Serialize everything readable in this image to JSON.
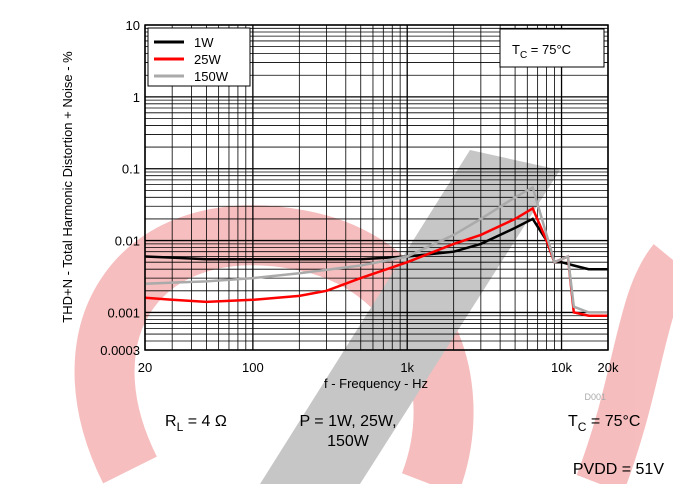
{
  "chart_data": {
    "type": "line",
    "log_x": true,
    "log_y": true,
    "grid": true,
    "ylabel": "THD+N - Total Harmonic Distortion + Noise - %",
    "xlabel": "f - Frequency - Hz",
    "xlim": [
      20,
      20000
    ],
    "ylim": [
      0.0003,
      10
    ],
    "xticks": [
      20,
      100,
      {
        "value": 1000,
        "label": "1k"
      },
      {
        "value": 10000,
        "label": "10k"
      },
      {
        "value": 20000,
        "label": "20k"
      }
    ],
    "yticks": [
      10,
      1,
      0.1,
      0.01,
      0.001,
      0.0003
    ],
    "xminor": [
      30,
      40,
      50,
      60,
      70,
      80,
      90,
      200,
      300,
      400,
      500,
      600,
      700,
      800,
      900,
      2000,
      3000,
      4000,
      5000,
      6000,
      7000,
      8000,
      9000
    ],
    "yminor": [
      0.0004,
      0.0005,
      0.0006,
      0.0007,
      0.0008,
      0.0009,
      0.002,
      0.003,
      0.004,
      0.005,
      0.006,
      0.007,
      0.008,
      0.009,
      0.02,
      0.03,
      0.04,
      0.05,
      0.06,
      0.07,
      0.08,
      0.09,
      0.2,
      0.3,
      0.4,
      0.5,
      0.6,
      0.7,
      0.8,
      0.9,
      2,
      3,
      4,
      5,
      6,
      7,
      8,
      9
    ],
    "legend": "upper left",
    "series": [
      {
        "name": "1W",
        "color": "#000000",
        "x": [
          20,
          30,
          50,
          100,
          200,
          500,
          1000,
          2000,
          3000,
          5000,
          6500,
          8000,
          9000,
          10000,
          12000,
          15000,
          20000
        ],
        "values": [
          0.006,
          0.0058,
          0.0055,
          0.0055,
          0.0055,
          0.0055,
          0.006,
          0.007,
          0.009,
          0.015,
          0.02,
          0.01,
          0.005,
          0.005,
          0.0045,
          0.004,
          0.004
        ]
      },
      {
        "name": "25W",
        "color": "#ff0000",
        "x": [
          20,
          30,
          50,
          100,
          200,
          300,
          500,
          1000,
          2000,
          3000,
          5000,
          6500,
          8000,
          9000,
          11000,
          12000,
          15000,
          20000
        ],
        "values": [
          0.0016,
          0.0015,
          0.0014,
          0.0015,
          0.0017,
          0.002,
          0.003,
          0.005,
          0.009,
          0.012,
          0.02,
          0.028,
          0.01,
          0.005,
          0.006,
          0.001,
          0.0009,
          0.0009
        ]
      },
      {
        "name": "150W",
        "color": "#aaaaaa",
        "x": [
          20,
          30,
          50,
          100,
          200,
          500,
          1000,
          2000,
          3000,
          5000,
          6500,
          8000,
          9000,
          11000,
          12000,
          15000,
          20000
        ],
        "values": [
          0.0025,
          0.0026,
          0.0027,
          0.003,
          0.0035,
          0.0045,
          0.006,
          0.012,
          0.02,
          0.04,
          0.055,
          0.012,
          0.005,
          0.006,
          0.0012,
          0.001,
          0.001
        ]
      }
    ],
    "inset": {
      "main": "T",
      "sub": "C",
      "rest": " = 75°C"
    },
    "code": "D001"
  },
  "notes": {
    "rl": {
      "main": "R",
      "sub": "L",
      "rest": " = 4 Ω"
    },
    "power": [
      "P = 1W, 25W,",
      "150W"
    ],
    "tc": {
      "main": "T",
      "sub": "C",
      "rest": " = 75°C"
    },
    "pvdd": "PVDD = 51V"
  }
}
